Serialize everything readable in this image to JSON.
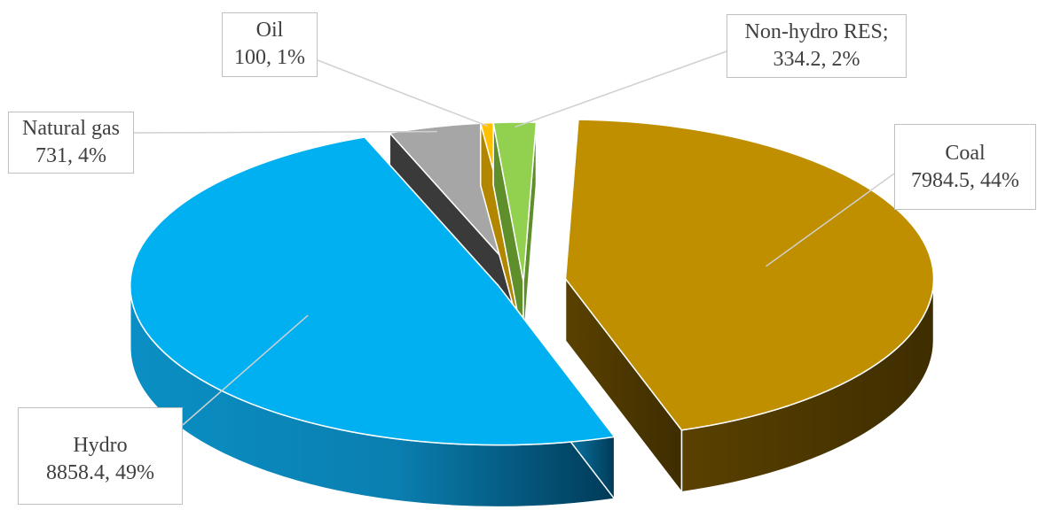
{
  "chart_data": {
    "type": "pie",
    "title": "",
    "categories": [
      "Coal",
      "Hydro",
      "Natural gas",
      "Oil",
      "Non-hydro RES"
    ],
    "values": [
      7984.5,
      8858.4,
      731,
      100,
      334.2
    ],
    "data_labels": [
      {
        "name": "Coal",
        "text": "7984.5, 44%"
      },
      {
        "name": "Hydro",
        "text": "8858.4, 49%"
      },
      {
        "name": "Natural gas",
        "text": "731, 4%"
      },
      {
        "name": "Oil",
        "text": "100, 1%"
      },
      {
        "name": "Non-hydro RES;",
        "text": "334.2, 2%"
      }
    ],
    "colors": {
      "Coal": "#bf8f00",
      "Hydro": "#00b0f0",
      "Natural gas": "#a6a6a6",
      "Oil": "#ffc000",
      "Non-hydro RES": "#92d050"
    },
    "legend": "none",
    "style": "3d-exploded"
  }
}
